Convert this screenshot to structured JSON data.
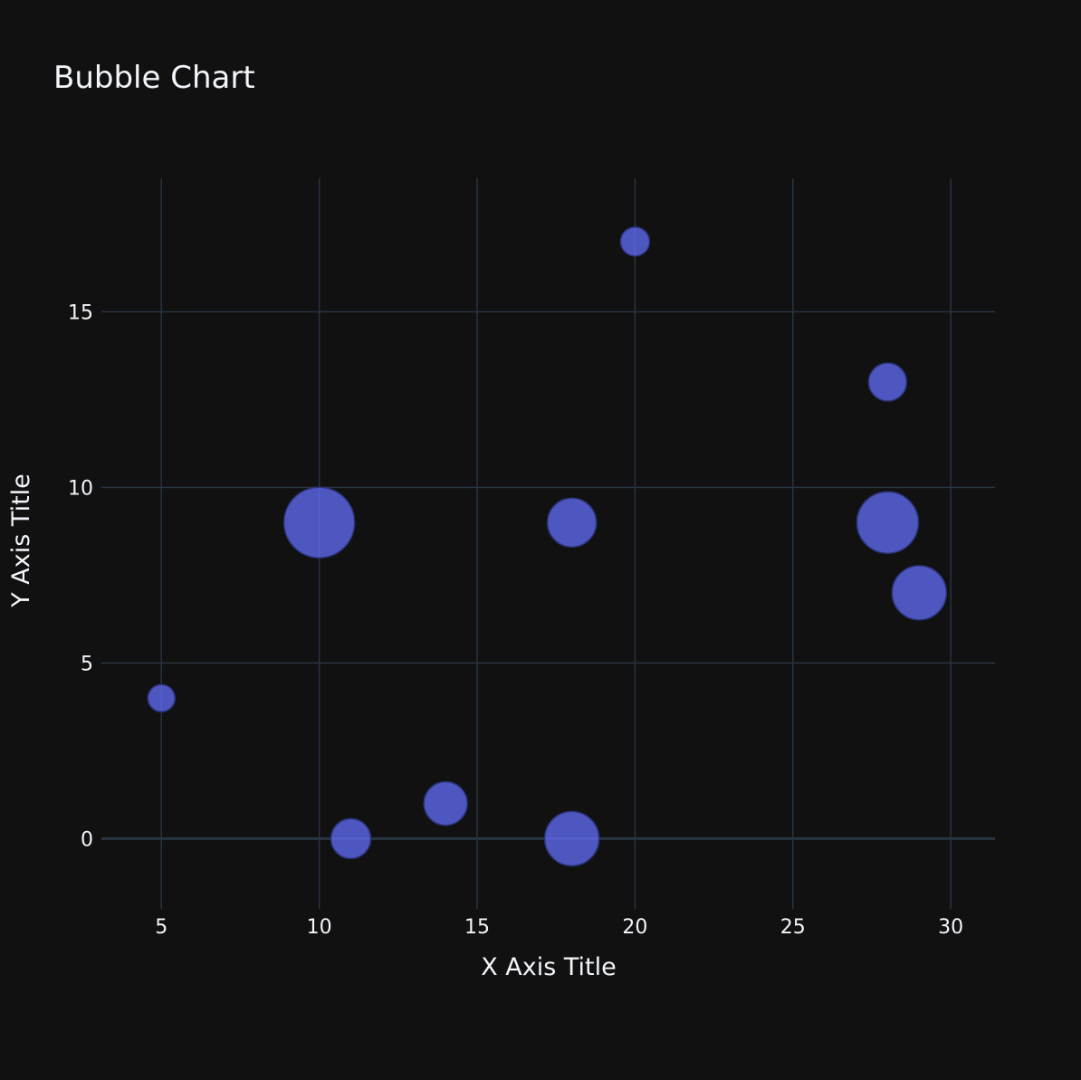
{
  "chart_data": {
    "type": "scatter",
    "title": "Bubble Chart",
    "xlabel": "X Axis Title",
    "ylabel": "Y Axis Title",
    "xlim": [
      3.1,
      31.4
    ],
    "ylim": [
      -2,
      18.8
    ],
    "x_ticks": [
      5,
      10,
      15,
      20,
      25,
      30
    ],
    "y_ticks": [
      0,
      5,
      10,
      15
    ],
    "grid": true,
    "legend": "none",
    "marker_color": "#636efa",
    "background_color": "#111111",
    "series": [
      {
        "points": [
          {
            "x": 5,
            "y": 4,
            "size": 15
          },
          {
            "x": 10,
            "y": 9,
            "size": 39
          },
          {
            "x": 11,
            "y": 0,
            "size": 22
          },
          {
            "x": 14,
            "y": 1,
            "size": 24
          },
          {
            "x": 18,
            "y": 9,
            "size": 27
          },
          {
            "x": 18,
            "y": 0,
            "size": 30
          },
          {
            "x": 20,
            "y": 17,
            "size": 16
          },
          {
            "x": 28,
            "y": 13,
            "size": 21
          },
          {
            "x": 28,
            "y": 9,
            "size": 34
          },
          {
            "x": 29,
            "y": 7,
            "size": 30
          }
        ]
      }
    ]
  }
}
